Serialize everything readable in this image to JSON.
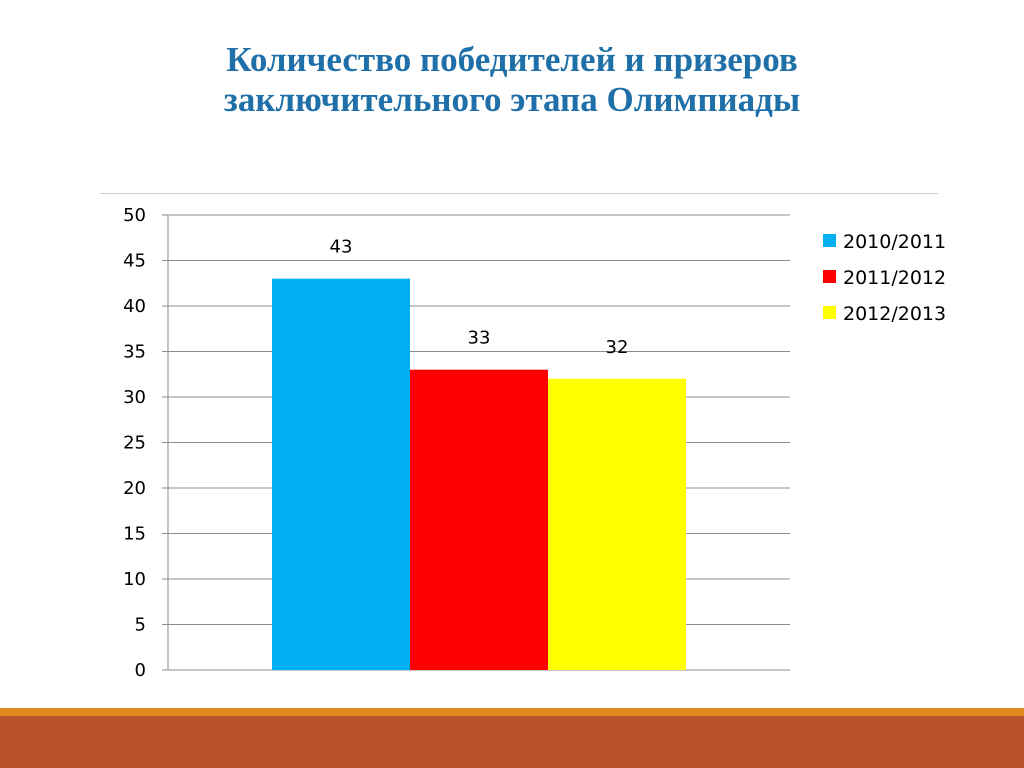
{
  "chart_data": {
    "type": "bar",
    "title_lines": [
      "Количество победителей и призеров",
      "заключительного этапа Олимпиады"
    ],
    "xlabel": "",
    "ylabel": "",
    "ylim": [
      0,
      50
    ],
    "yticks": [
      "0",
      "5",
      "10",
      "15",
      "20",
      "25",
      "30",
      "35",
      "40",
      "45",
      "50"
    ],
    "grid": true,
    "legend_position": "right",
    "series": [
      {
        "name": "2010/2011",
        "values": [
          43
        ],
        "label": "43",
        "color": "#00b0f0"
      },
      {
        "name": "2011/2012",
        "values": [
          33
        ],
        "label": "33",
        "color": "#ff0000"
      },
      {
        "name": "2012/2013",
        "values": [
          32
        ],
        "label": "32",
        "color": "#ffff00"
      }
    ]
  },
  "colors": {
    "title": "#1f6fa8",
    "footer_accent": "#e18a1e",
    "footer_band": "#b8532a"
  }
}
